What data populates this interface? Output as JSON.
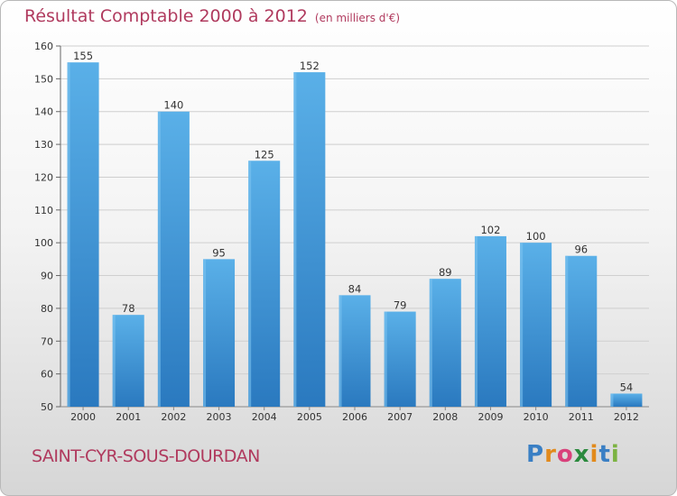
{
  "chart_data": {
    "type": "bar",
    "title": "Résultat Comptable 2000 à 2012",
    "subtitle": "(en milliers d'€)",
    "categories": [
      "2000",
      "2001",
      "2002",
      "2003",
      "2004",
      "2005",
      "2006",
      "2007",
      "2008",
      "2009",
      "2010",
      "2011",
      "2012"
    ],
    "values": [
      155,
      78,
      140,
      95,
      125,
      152,
      84,
      79,
      89,
      102,
      100,
      96,
      54
    ],
    "ylim": [
      50,
      160
    ],
    "yticks": [
      50,
      60,
      70,
      80,
      90,
      100,
      110,
      120,
      130,
      140,
      150,
      160
    ],
    "xlabel": "",
    "ylabel": "",
    "grid": true
  },
  "commune": "SAINT-CYR-SOUS-DOURDAN",
  "logo": {
    "letters": [
      "P",
      "r",
      "o",
      "x",
      "i",
      "t",
      "i"
    ],
    "colors": [
      "#3a7fc4",
      "#e28a1c",
      "#d9417b",
      "#2b8a3e",
      "#e28a1c",
      "#3a7fc4",
      "#7cb342"
    ]
  },
  "colors": {
    "bar_light": "#5aaee6",
    "bar_dark": "#2a7bc0",
    "title": "#b03a5e"
  }
}
